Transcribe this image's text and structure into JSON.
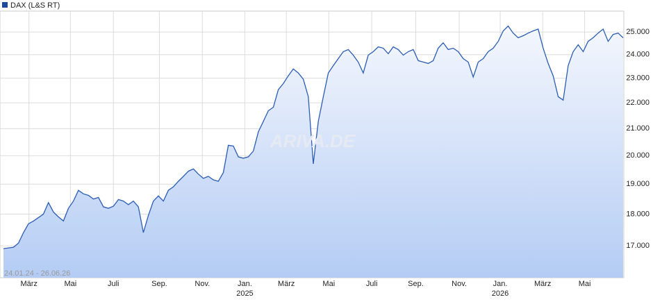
{
  "chart_data": {
    "type": "area",
    "series": [
      {
        "name": "DAX (L&S RT)",
        "color": "#2a5cb5",
        "values": [
          16915,
          16936,
          16958,
          17085,
          17410,
          17690,
          17780,
          17890,
          18000,
          18380,
          18070,
          17910,
          17780,
          18190,
          18430,
          18790,
          18670,
          18620,
          18500,
          18550,
          18240,
          18190,
          18260,
          18480,
          18430,
          18310,
          18430,
          18240,
          17410,
          17960,
          18430,
          18600,
          18430,
          18790,
          18910,
          19100,
          19270,
          19450,
          19530,
          19350,
          19200,
          19270,
          19150,
          19100,
          19400,
          20380,
          20350,
          19960,
          19910,
          19960,
          20170,
          20880,
          21280,
          21690,
          21830,
          22530,
          22780,
          23100,
          23390,
          23220,
          22960,
          22250,
          19710,
          21280,
          22250,
          23220,
          23530,
          23830,
          24130,
          24220,
          23980,
          23680,
          23220,
          23980,
          24130,
          24340,
          24280,
          24040,
          24340,
          24220,
          23980,
          24130,
          24220,
          23740,
          23680,
          23620,
          23740,
          24280,
          24520,
          24220,
          24280,
          24130,
          23830,
          23680,
          23050,
          23680,
          23830,
          24130,
          24280,
          24580,
          25050,
          25270,
          24950,
          24740,
          24830,
          24950,
          25050,
          25130,
          24280,
          23620,
          23100,
          22250,
          22110,
          23530,
          24130,
          24430,
          24130,
          24580,
          24740,
          24950,
          25130,
          24580,
          24890,
          24950,
          24740
        ]
      }
    ],
    "xlim": [
      0,
      124
    ],
    "xticks": [
      {
        "value": 5.1,
        "label": "März"
      },
      {
        "value": 13.4,
        "label": "Mai"
      },
      {
        "value": 22,
        "label": "Juli"
      },
      {
        "value": 31.2,
        "label": "Sep."
      },
      {
        "value": 39.8,
        "label": "Nov."
      },
      {
        "value": 48.3,
        "label": "Jan."
      },
      {
        "value": 56.6,
        "label": "März"
      },
      {
        "value": 65.1,
        "label": "Mai"
      },
      {
        "value": 73.7,
        "label": "Juli"
      },
      {
        "value": 82.5,
        "label": "Sep."
      },
      {
        "value": 91.2,
        "label": "Nov."
      },
      {
        "value": 99.4,
        "label": "Jan."
      },
      {
        "value": 107.9,
        "label": "März"
      },
      {
        "value": 116.3,
        "label": "Mai"
      }
    ],
    "xticks_year": [
      {
        "value": 48.3,
        "label": "2025"
      },
      {
        "value": 99.4,
        "label": "2026"
      }
    ],
    "ylim": [
      16050,
      25960
    ],
    "ylog": true,
    "yticks": [
      {
        "value": 17000,
        "label": "17.000"
      },
      {
        "value": 18000,
        "label": "18.000"
      },
      {
        "value": 19000,
        "label": "19.000"
      },
      {
        "value": 20000,
        "label": "20.000"
      },
      {
        "value": 21000,
        "label": "21.000"
      },
      {
        "value": 22000,
        "label": "22.000"
      },
      {
        "value": 23000,
        "label": "23.000"
      },
      {
        "value": 24000,
        "label": "24.000"
      },
      {
        "value": 25000,
        "label": "25.000"
      }
    ],
    "grid": true,
    "date_range": "24.01.24 - 26.06.26",
    "watermark": "ARIVA.DE"
  }
}
